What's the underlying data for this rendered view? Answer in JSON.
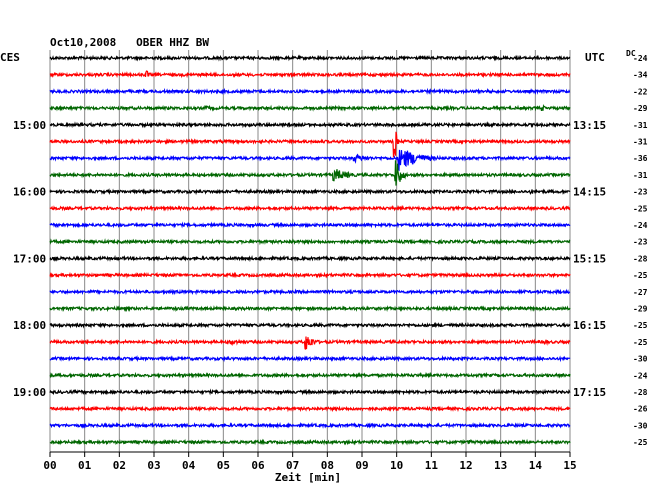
{
  "chart_data": {
    "type": "line",
    "title": "Oct10,2008   OBER HHZ BW",
    "left_label": "CES",
    "right_label": "UTC",
    "dc_label": "DC",
    "xlabel": "Zeit [min]",
    "xlim": [
      0,
      15
    ],
    "x_ticks": [
      "00",
      "01",
      "02",
      "03",
      "04",
      "05",
      "06",
      "07",
      "08",
      "09",
      "10",
      "11",
      "12",
      "13",
      "14",
      "15"
    ],
    "grid": true,
    "trace_colors": [
      "#000000",
      "#ff0000",
      "#0000ff",
      "#006600"
    ],
    "left_time_labels": [
      {
        "trace": 4,
        "text": "15:00"
      },
      {
        "trace": 8,
        "text": "16:00"
      },
      {
        "trace": 12,
        "text": "17:00"
      },
      {
        "trace": 16,
        "text": "18:00"
      },
      {
        "trace": 20,
        "text": "19:00"
      }
    ],
    "right_time_labels": [
      {
        "trace": 4,
        "text": "13:15"
      },
      {
        "trace": 8,
        "text": "14:15"
      },
      {
        "trace": 12,
        "text": "15:15"
      },
      {
        "trace": 16,
        "text": "16:15"
      },
      {
        "trace": 20,
        "text": "17:15"
      }
    ],
    "dc_offsets": [
      -24,
      -34,
      -22,
      -29,
      -31,
      -31,
      -36,
      -31,
      -23,
      -25,
      -24,
      -23,
      -28,
      -25,
      -27,
      -29,
      -25,
      -25,
      -30,
      -24,
      -28,
      -26,
      -30,
      -25
    ],
    "events": [
      {
        "trace": 1,
        "minute": 2.8,
        "amplitude": 4,
        "duration": 0.3
      },
      {
        "trace": 3,
        "minute": 4.5,
        "amplitude": 2.5,
        "duration": 0.8
      },
      {
        "trace": 3,
        "minute": 14.2,
        "amplitude": 3,
        "duration": 0.5
      },
      {
        "trace": 4,
        "minute": 9.9,
        "amplitude": 2,
        "duration": 0.3
      },
      {
        "trace": 5,
        "minute": 9.95,
        "amplitude": 20,
        "duration": 0.15
      },
      {
        "trace": 6,
        "minute": 8.8,
        "amplitude": 4,
        "duration": 1.5
      },
      {
        "trace": 6,
        "minute": 10.1,
        "amplitude": 12,
        "duration": 1.6
      },
      {
        "trace": 7,
        "minute": 8.2,
        "amplitude": 7,
        "duration": 1.2
      },
      {
        "trace": 7,
        "minute": 10.0,
        "amplitude": 16,
        "duration": 0.4
      },
      {
        "trace": 8,
        "minute": 13.9,
        "amplitude": 2.5,
        "duration": 0.3
      },
      {
        "trace": 10,
        "minute": 0.3,
        "amplitude": 2.5,
        "duration": 0.3
      },
      {
        "trace": 11,
        "minute": 7.0,
        "amplitude": 2,
        "duration": 0.8
      },
      {
        "trace": 15,
        "minute": 3.6,
        "amplitude": 3,
        "duration": 0.3
      },
      {
        "trace": 17,
        "minute": 5.2,
        "amplitude": 3,
        "duration": 1.5
      },
      {
        "trace": 17,
        "minute": 7.4,
        "amplitude": 9,
        "duration": 0.6
      },
      {
        "trace": 17,
        "minute": 14.3,
        "amplitude": 3,
        "duration": 0.4
      },
      {
        "trace": 23,
        "minute": 12.1,
        "amplitude": 2.5,
        "duration": 0.5
      }
    ]
  }
}
